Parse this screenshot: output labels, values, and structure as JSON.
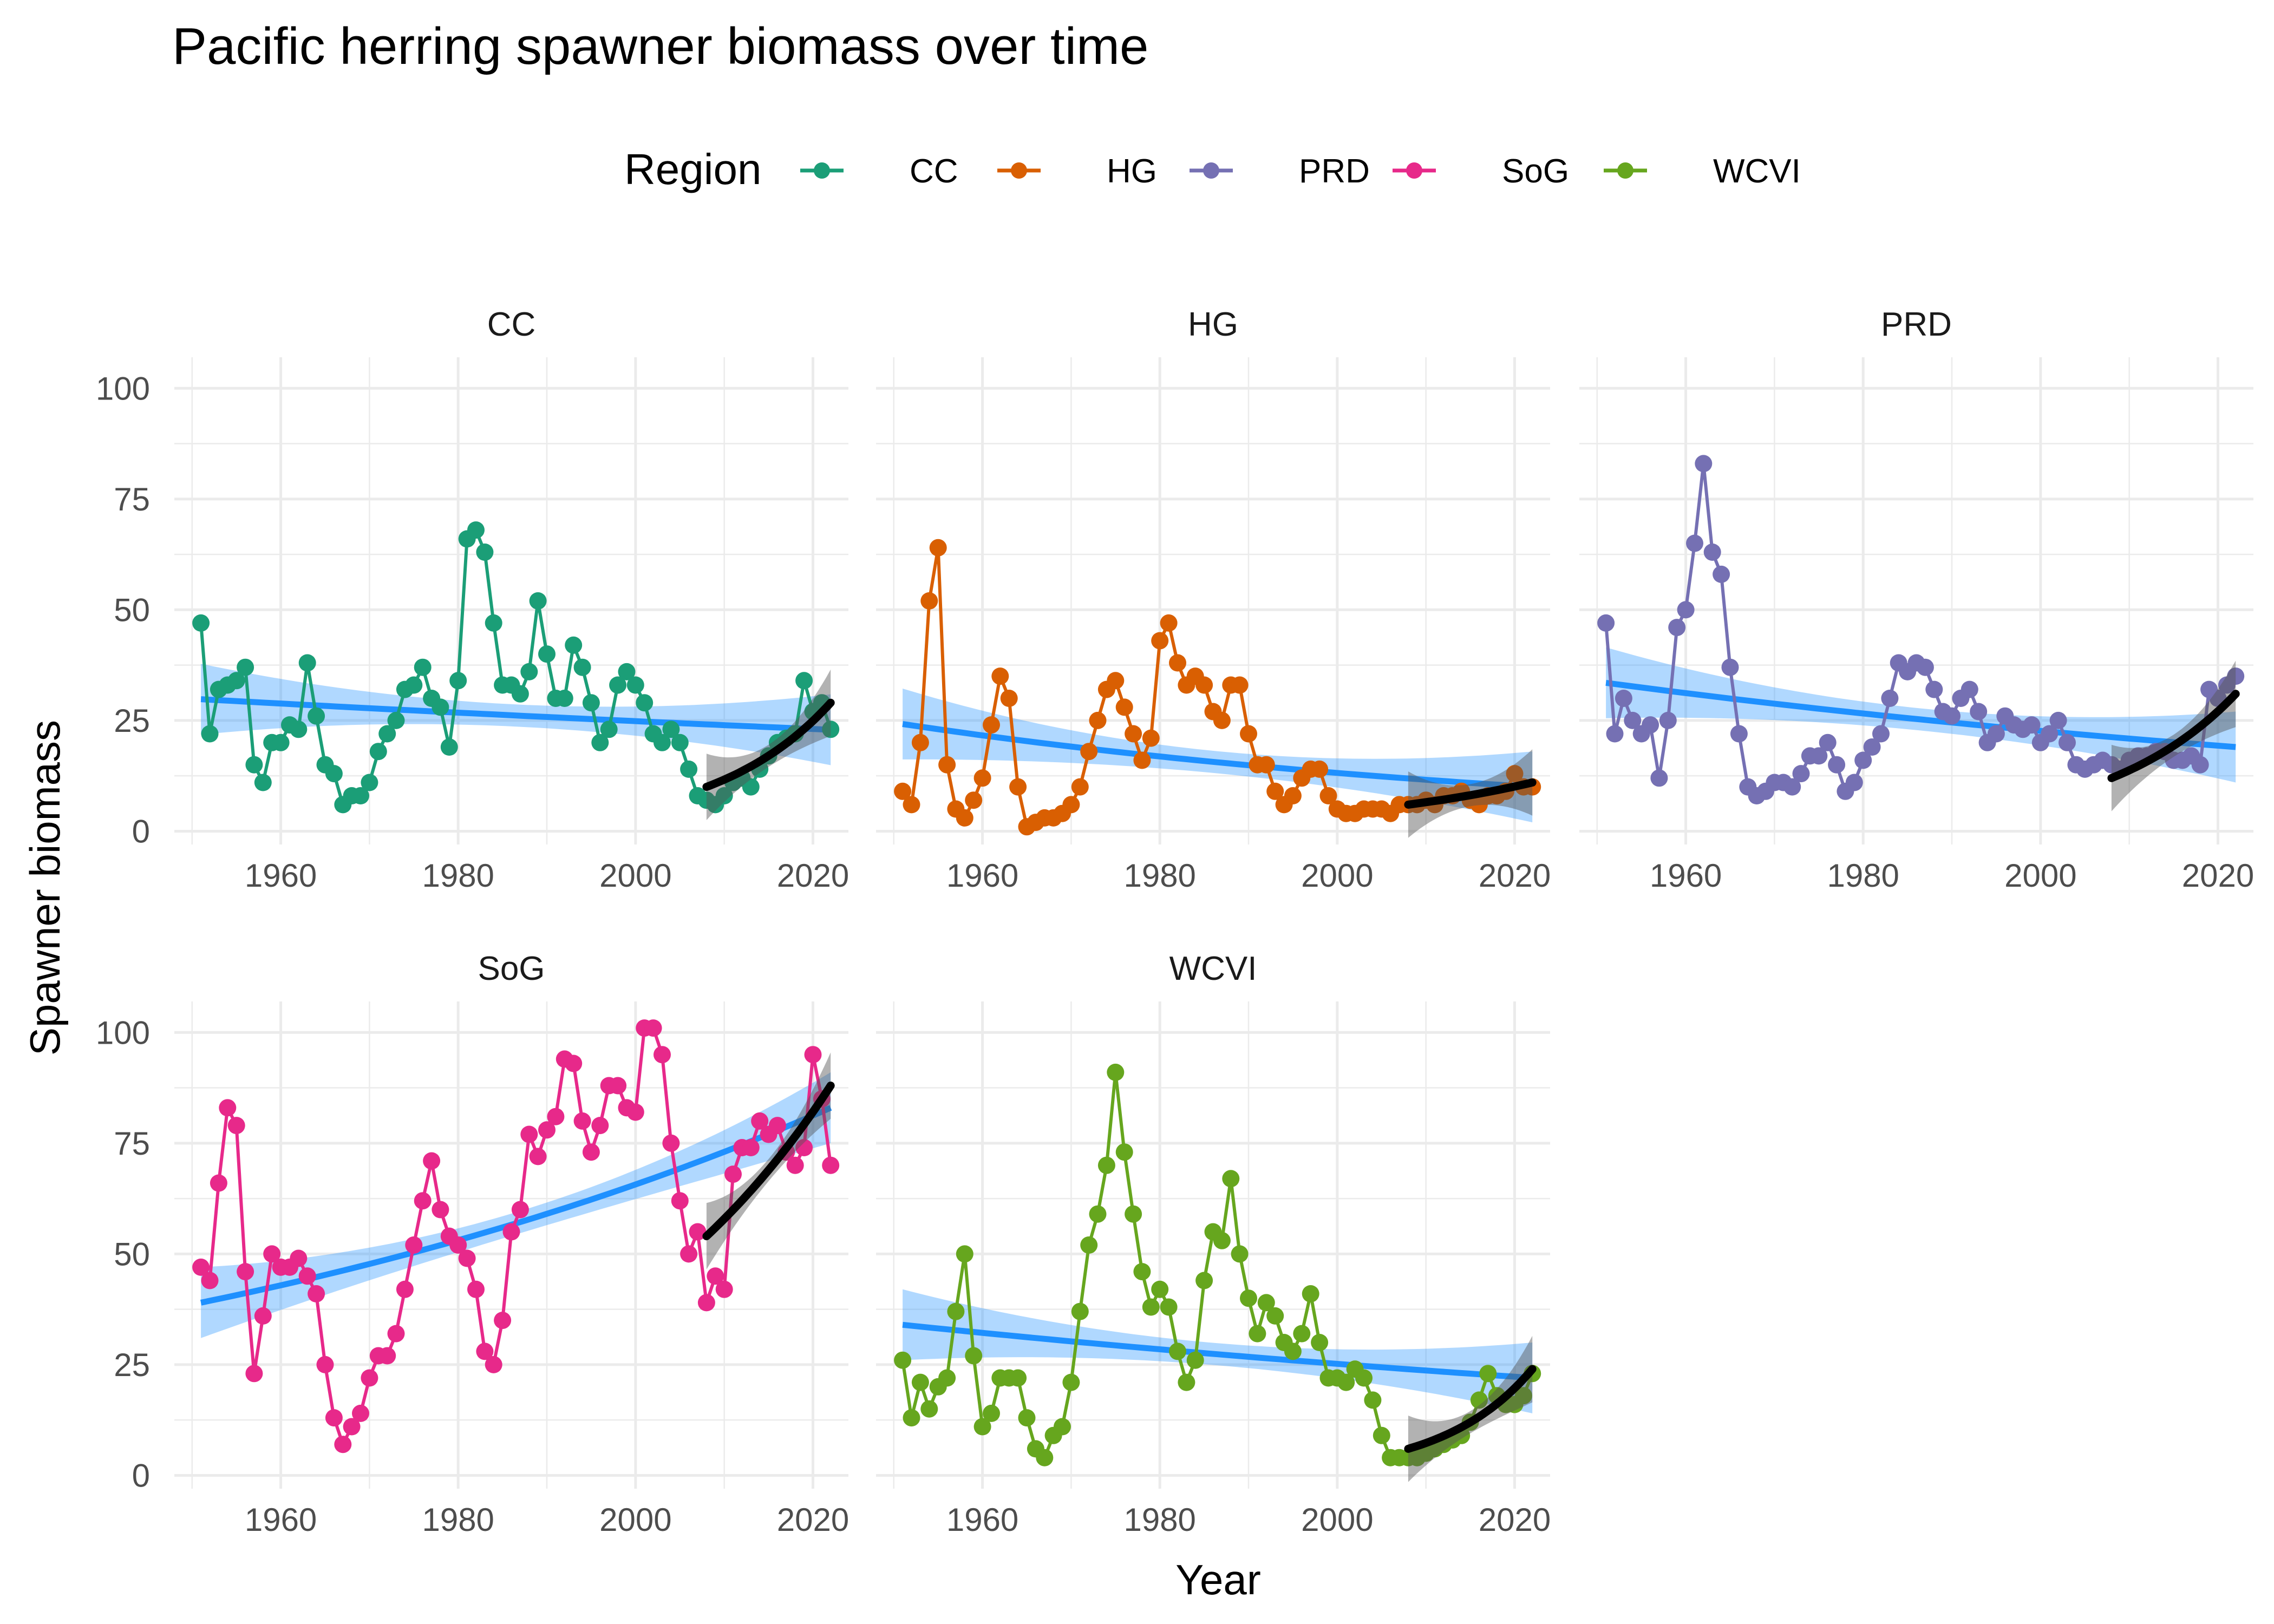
{
  "title": "Pacific herring spawner biomass over time",
  "xlabel": "Year",
  "ylabel": "Spawner biomass",
  "legend": {
    "title": "Region",
    "position": "top",
    "items": [
      {
        "label": "CC",
        "color": "#1b9e77"
      },
      {
        "label": "HG",
        "color": "#d95f02"
      },
      {
        "label": "PRD",
        "color": "#7570b3"
      },
      {
        "label": "SoG",
        "color": "#e7298a"
      },
      {
        "label": "WCVI",
        "color": "#66a61e"
      }
    ]
  },
  "chart_data": {
    "type": "line",
    "facets": true,
    "xlim": [
      1948,
      2024
    ],
    "ylim": [
      -3,
      107
    ],
    "x_ticks": [
      "1960",
      "1980",
      "2000",
      "2020"
    ],
    "y_ticks": [
      "0",
      "25",
      "50",
      "75",
      "100"
    ],
    "grid": true,
    "trend_color": "#1e90ff",
    "recent_trend_color": "#000000",
    "panels": [
      {
        "name": "CC",
        "color": "#1b9e77",
        "x": [
          1951,
          1952,
          1953,
          1954,
          1955,
          1956,
          1957,
          1958,
          1959,
          1960,
          1961,
          1962,
          1963,
          1964,
          1965,
          1966,
          1967,
          1968,
          1969,
          1970,
          1971,
          1972,
          1973,
          1974,
          1975,
          1976,
          1977,
          1978,
          1979,
          1980,
          1981,
          1982,
          1983,
          1984,
          1985,
          1986,
          1987,
          1988,
          1989,
          1990,
          1991,
          1992,
          1993,
          1994,
          1995,
          1996,
          1997,
          1998,
          1999,
          2000,
          2001,
          2002,
          2003,
          2004,
          2005,
          2006,
          2007,
          2008,
          2009,
          2010,
          2011,
          2012,
          2013,
          2014,
          2015,
          2016,
          2017,
          2018,
          2019,
          2020,
          2021,
          2022
        ],
        "y": [
          47,
          22,
          32,
          33,
          34,
          37,
          15,
          11,
          20,
          20,
          24,
          23,
          38,
          26,
          15,
          13,
          6,
          8,
          8,
          11,
          18,
          22,
          25,
          32,
          33,
          37,
          30,
          28,
          19,
          34,
          66,
          68,
          63,
          47,
          33,
          33,
          31,
          36,
          52,
          40,
          30,
          30,
          42,
          37,
          29,
          20,
          23,
          33,
          36,
          33,
          29,
          22,
          20,
          23,
          20,
          14,
          8,
          7,
          6,
          8,
          11,
          12,
          10,
          14,
          17,
          20,
          21,
          22,
          34,
          27,
          29,
          23
        ],
        "trend": [
          29.8,
          22.9
        ],
        "recent": [
          10,
          29
        ]
      },
      {
        "name": "HG",
        "color": "#d95f02",
        "x": [
          1951,
          1952,
          1953,
          1954,
          1955,
          1956,
          1957,
          1958,
          1959,
          1960,
          1961,
          1962,
          1963,
          1964,
          1965,
          1966,
          1967,
          1968,
          1969,
          1970,
          1971,
          1972,
          1973,
          1974,
          1975,
          1976,
          1977,
          1978,
          1979,
          1980,
          1981,
          1982,
          1983,
          1984,
          1985,
          1986,
          1987,
          1988,
          1989,
          1990,
          1991,
          1992,
          1993,
          1994,
          1995,
          1996,
          1997,
          1998,
          1999,
          2000,
          2001,
          2002,
          2003,
          2004,
          2005,
          2006,
          2007,
          2008,
          2009,
          2010,
          2011,
          2012,
          2013,
          2014,
          2015,
          2016,
          2017,
          2018,
          2019,
          2020,
          2021,
          2022
        ],
        "y": [
          9,
          6,
          20,
          52,
          64,
          15,
          5,
          3,
          7,
          12,
          24,
          35,
          30,
          10,
          1,
          2,
          3,
          3,
          4,
          6,
          10,
          18,
          25,
          32,
          34,
          28,
          22,
          16,
          21,
          43,
          47,
          38,
          33,
          35,
          33,
          27,
          25,
          33,
          33,
          22,
          15,
          15,
          9,
          6,
          8,
          12,
          14,
          14,
          8,
          5,
          4,
          4,
          5,
          5,
          5,
          4,
          6,
          6,
          6,
          7,
          6,
          8,
          8,
          9,
          7,
          6,
          8,
          8,
          9,
          13,
          10,
          10
        ],
        "trend": [
          24.2,
          10.0
        ],
        "recent": [
          6,
          11
        ]
      },
      {
        "name": "PRD",
        "color": "#7570b3",
        "x": [
          1951,
          1952,
          1953,
          1954,
          1955,
          1956,
          1957,
          1958,
          1959,
          1960,
          1961,
          1962,
          1963,
          1964,
          1965,
          1966,
          1967,
          1968,
          1969,
          1970,
          1971,
          1972,
          1973,
          1974,
          1975,
          1976,
          1977,
          1978,
          1979,
          1980,
          1981,
          1982,
          1983,
          1984,
          1985,
          1986,
          1987,
          1988,
          1989,
          1990,
          1991,
          1992,
          1993,
          1994,
          1995,
          1996,
          1997,
          1998,
          1999,
          2000,
          2001,
          2002,
          2003,
          2004,
          2005,
          2006,
          2007,
          2008,
          2009,
          2010,
          2011,
          2012,
          2013,
          2014,
          2015,
          2016,
          2017,
          2018,
          2019,
          2020,
          2021,
          2022
        ],
        "y": [
          47,
          22,
          30,
          25,
          22,
          24,
          12,
          25,
          46,
          50,
          65,
          83,
          63,
          58,
          37,
          22,
          10,
          8,
          9,
          11,
          11,
          10,
          13,
          17,
          17,
          20,
          15,
          9,
          11,
          16,
          19,
          22,
          30,
          38,
          36,
          38,
          37,
          32,
          27,
          26,
          30,
          32,
          27,
          20,
          22,
          26,
          24,
          23,
          24,
          20,
          22,
          25,
          20,
          15,
          14,
          15,
          16,
          15,
          14,
          16,
          17,
          17,
          18,
          18,
          16,
          16,
          17,
          15,
          32,
          30,
          33,
          35
        ],
        "trend": [
          33.5,
          19.0
        ],
        "recent": [
          12,
          31
        ]
      },
      {
        "name": "SoG",
        "color": "#e7298a",
        "x": [
          1951,
          1952,
          1953,
          1954,
          1955,
          1956,
          1957,
          1958,
          1959,
          1960,
          1961,
          1962,
          1963,
          1964,
          1965,
          1966,
          1967,
          1968,
          1969,
          1970,
          1971,
          1972,
          1973,
          1974,
          1975,
          1976,
          1977,
          1978,
          1979,
          1980,
          1981,
          1982,
          1983,
          1984,
          1985,
          1986,
          1987,
          1988,
          1989,
          1990,
          1991,
          1992,
          1993,
          1994,
          1995,
          1996,
          1997,
          1998,
          1999,
          2000,
          2001,
          2002,
          2003,
          2004,
          2005,
          2006,
          2007,
          2008,
          2009,
          2010,
          2011,
          2012,
          2013,
          2014,
          2015,
          2016,
          2017,
          2018,
          2019,
          2020,
          2021,
          2022
        ],
        "y": [
          47,
          44,
          66,
          83,
          79,
          46,
          23,
          36,
          50,
          47,
          47,
          49,
          45,
          41,
          25,
          13,
          7,
          11,
          14,
          22,
          27,
          27,
          32,
          42,
          52,
          62,
          71,
          60,
          54,
          52,
          49,
          42,
          28,
          25,
          35,
          55,
          60,
          77,
          72,
          78,
          81,
          94,
          93,
          80,
          73,
          79,
          88,
          88,
          83,
          82,
          101,
          101,
          95,
          75,
          62,
          50,
          55,
          39,
          45,
          42,
          68,
          74,
          74,
          80,
          77,
          79,
          73,
          70,
          74,
          95,
          85,
          70
        ],
        "trend": [
          39.0,
          83.0
        ],
        "recent": [
          54,
          88
        ]
      },
      {
        "name": "WCVI",
        "color": "#66a61e",
        "x": [
          1951,
          1952,
          1953,
          1954,
          1955,
          1956,
          1957,
          1958,
          1959,
          1960,
          1961,
          1962,
          1963,
          1964,
          1965,
          1966,
          1967,
          1968,
          1969,
          1970,
          1971,
          1972,
          1973,
          1974,
          1975,
          1976,
          1977,
          1978,
          1979,
          1980,
          1981,
          1982,
          1983,
          1984,
          1985,
          1986,
          1987,
          1988,
          1989,
          1990,
          1991,
          1992,
          1993,
          1994,
          1995,
          1996,
          1997,
          1998,
          1999,
          2000,
          2001,
          2002,
          2003,
          2004,
          2005,
          2006,
          2007,
          2008,
          2009,
          2010,
          2011,
          2012,
          2013,
          2014,
          2015,
          2016,
          2017,
          2018,
          2019,
          2020,
          2021,
          2022
        ],
        "y": [
          26,
          13,
          21,
          15,
          20,
          22,
          37,
          50,
          27,
          11,
          14,
          22,
          22,
          22,
          13,
          6,
          4,
          9,
          11,
          21,
          37,
          52,
          59,
          70,
          91,
          73,
          59,
          46,
          38,
          42,
          38,
          28,
          21,
          26,
          44,
          55,
          53,
          67,
          50,
          40,
          32,
          39,
          36,
          30,
          28,
          32,
          41,
          30,
          22,
          22,
          21,
          24,
          22,
          17,
          9,
          4,
          4,
          4,
          4,
          5,
          6,
          7,
          8,
          9,
          12,
          17,
          23,
          18,
          16,
          16,
          18,
          23
        ],
        "trend": [
          34.0,
          22.0
        ],
        "recent": [
          6,
          24
        ]
      }
    ]
  }
}
